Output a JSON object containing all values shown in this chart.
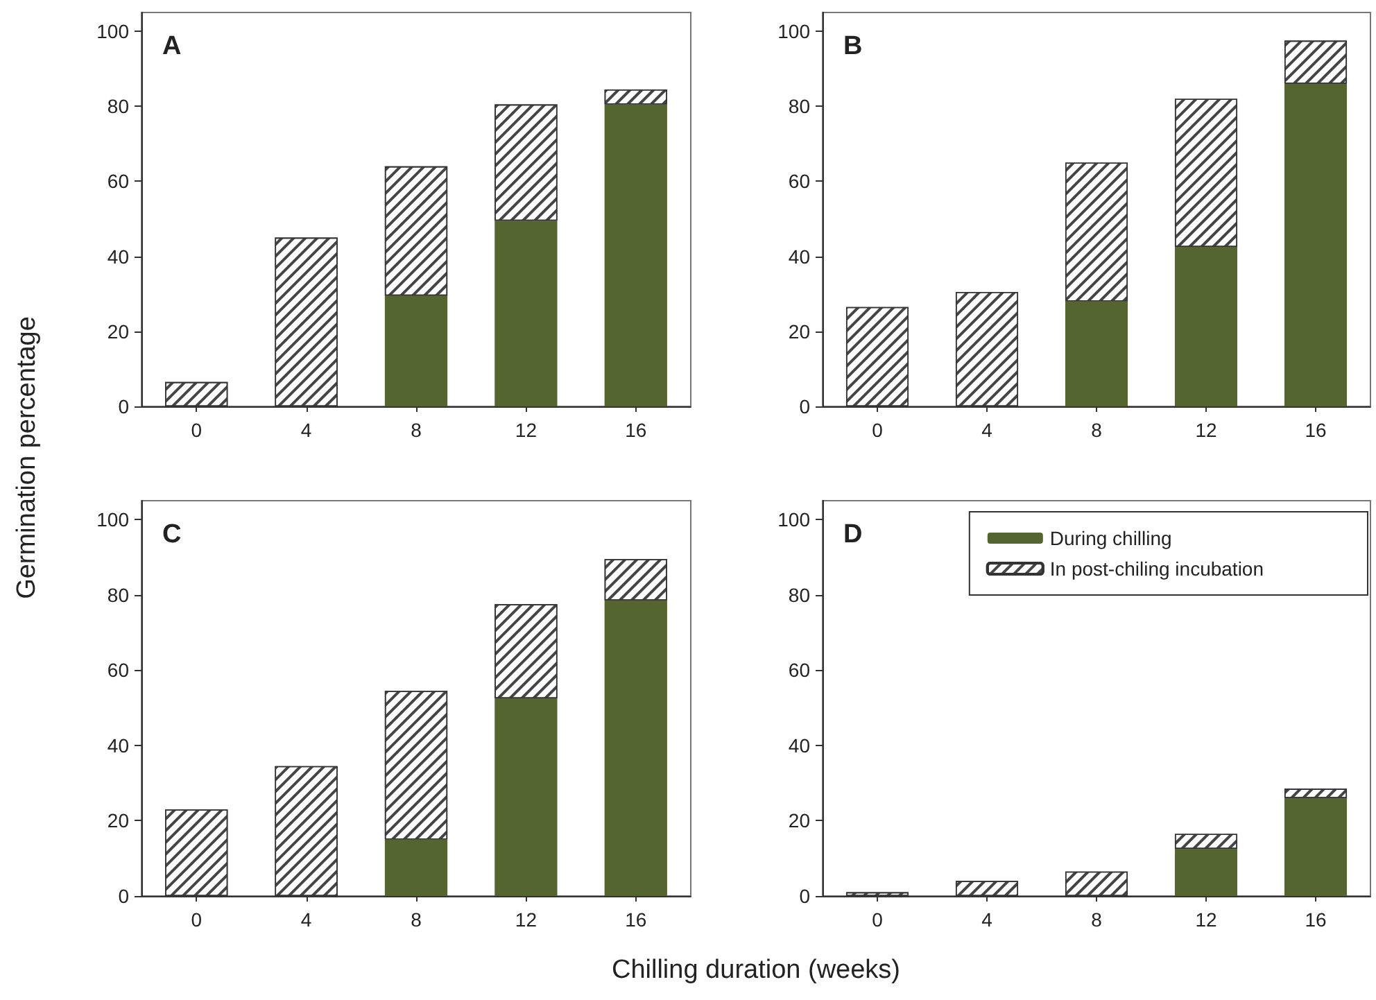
{
  "chart_data": [
    {
      "type": "bar",
      "title": "A",
      "ylabel": "Germination percentage",
      "categories": [
        "0",
        "4",
        "8",
        "12",
        "16"
      ],
      "stacked": true,
      "ylim": [
        0,
        105
      ],
      "yticks": [
        0,
        20,
        40,
        60,
        80,
        100
      ],
      "series": [
        {
          "color": "#55652f",
          "values": [
            0,
            0,
            29.5,
            49.5,
            80.5
          ]
        },
        {
          "color": "#ffffff",
          "values": [
            6.5,
            45,
            34.5,
            31,
            4
          ]
        }
      ]
    },
    {
      "type": "bar",
      "title": "B",
      "categories": [
        "0",
        "4",
        "8",
        "12",
        "16"
      ],
      "stacked": true,
      "ylim": [
        0,
        105
      ],
      "yticks": [
        0,
        20,
        40,
        60,
        80,
        100
      ],
      "series": [
        {
          "color": "#55652f",
          "values": [
            0,
            0,
            28,
            42.5,
            86
          ]
        },
        {
          "color": "#ffffff",
          "values": [
            26.5,
            30.5,
            37,
            39.5,
            11.5
          ]
        }
      ]
    },
    {
      "type": "bar",
      "title": "C",
      "xlabel": "Chilling duration (weeks)",
      "categories": [
        "0",
        "4",
        "8",
        "12",
        "16"
      ],
      "stacked": true,
      "ylim": [
        0,
        105
      ],
      "yticks": [
        0,
        20,
        40,
        60,
        80,
        100
      ],
      "series": [
        {
          "color": "#55652f",
          "values": [
            0,
            0,
            15,
            52.5,
            78.5
          ]
        },
        {
          "color": "#ffffff",
          "values": [
            23,
            34.5,
            39.5,
            25,
            11
          ]
        }
      ]
    },
    {
      "type": "bar",
      "title": "D",
      "categories": [
        "0",
        "4",
        "8",
        "12",
        "16"
      ],
      "stacked": true,
      "ylim": [
        0,
        105
      ],
      "yticks": [
        0,
        20,
        40,
        60,
        80,
        100
      ],
      "legend": "top right",
      "series": [
        {
          "name": "During chilling",
          "color": "#55652f",
          "values": [
            0,
            0,
            0,
            12.5,
            26
          ]
        },
        {
          "name": "In post-chiling incubation",
          "color": "#ffffff",
          "values": [
            1,
            4,
            6.5,
            4,
            2.5
          ]
        }
      ]
    }
  ]
}
